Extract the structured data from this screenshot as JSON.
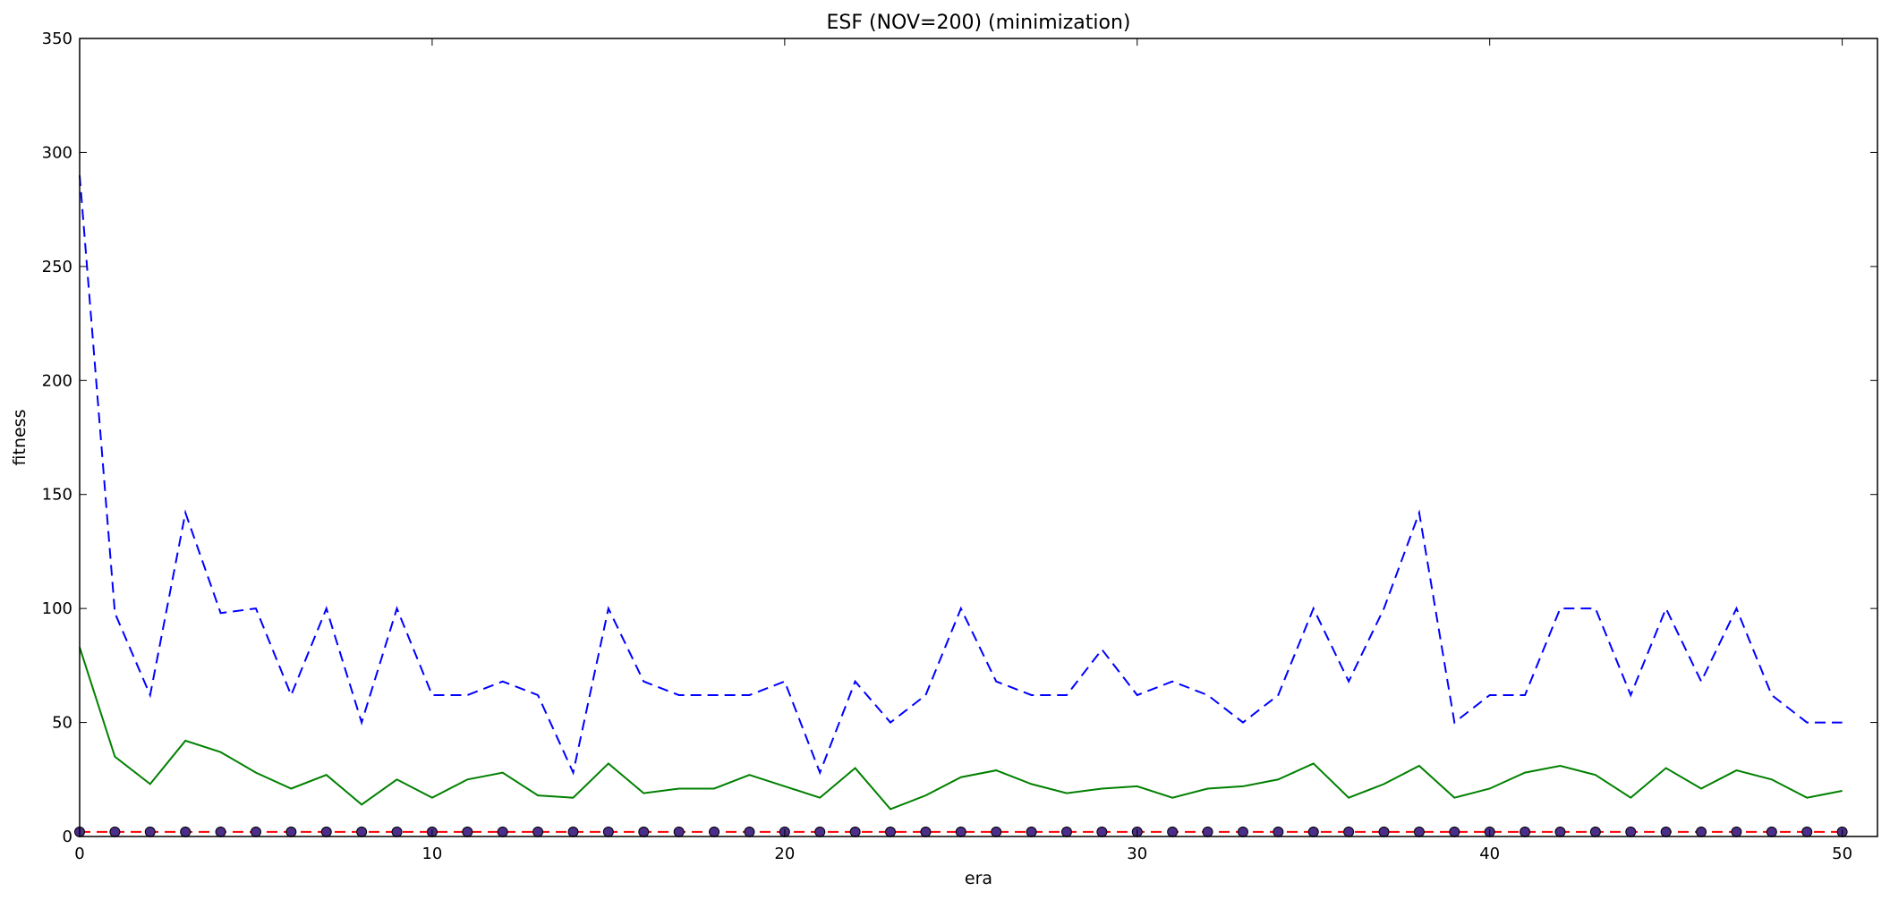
{
  "chart_data": {
    "type": "line",
    "title": "ESF (NOV=200) (minimization)",
    "xlabel": "era",
    "ylabel": "fitness",
    "xlim": [
      0,
      51
    ],
    "ylim": [
      0,
      350
    ],
    "xticks": [
      0,
      10,
      20,
      30,
      40,
      50
    ],
    "yticks": [
      0,
      50,
      100,
      150,
      200,
      250,
      300,
      350
    ],
    "grid": false,
    "legend": "none",
    "x": [
      0,
      1,
      2,
      3,
      4,
      5,
      6,
      7,
      8,
      9,
      10,
      11,
      12,
      13,
      14,
      15,
      16,
      17,
      18,
      19,
      20,
      21,
      22,
      23,
      24,
      25,
      26,
      27,
      28,
      29,
      30,
      31,
      32,
      33,
      34,
      35,
      36,
      37,
      38,
      39,
      40,
      41,
      42,
      43,
      44,
      45,
      46,
      47,
      48,
      49,
      50
    ],
    "series": [
      {
        "color": "#0000ff",
        "style": "dashed",
        "values": [
          290,
          98,
          62,
          142,
          98,
          100,
          62,
          100,
          50,
          100,
          62,
          62,
          68,
          62,
          28,
          100,
          68,
          62,
          62,
          62,
          68,
          28,
          68,
          50,
          62,
          100,
          68,
          62,
          62,
          82,
          62,
          68,
          62,
          50,
          62,
          100,
          68,
          100,
          142,
          50,
          62,
          62,
          100,
          100,
          62,
          100,
          68,
          100,
          62,
          50,
          50
        ]
      },
      {
        "color": "#008000",
        "style": "solid",
        "values": [
          83,
          35,
          23,
          42,
          37,
          28,
          21,
          27,
          14,
          25,
          17,
          25,
          28,
          18,
          17,
          32,
          19,
          21,
          21,
          27,
          22,
          17,
          30,
          12,
          18,
          26,
          29,
          23,
          19,
          21,
          22,
          17,
          21,
          22,
          25,
          32,
          17,
          23,
          31,
          17,
          21,
          28,
          31,
          27,
          17,
          30,
          21,
          29,
          25,
          17,
          20
        ]
      },
      {
        "color": "#ff0000",
        "style": "dashed",
        "marker": "circle",
        "marker_color": "#4b2d8a",
        "values": [
          2,
          2,
          2,
          2,
          2,
          2,
          2,
          2,
          2,
          2,
          2,
          2,
          2,
          2,
          2,
          2,
          2,
          2,
          2,
          2,
          2,
          2,
          2,
          2,
          2,
          2,
          2,
          2,
          2,
          2,
          2,
          2,
          2,
          2,
          2,
          2,
          2,
          2,
          2,
          2,
          2,
          2,
          2,
          2,
          2,
          2,
          2,
          2,
          2,
          2,
          2
        ]
      }
    ]
  }
}
